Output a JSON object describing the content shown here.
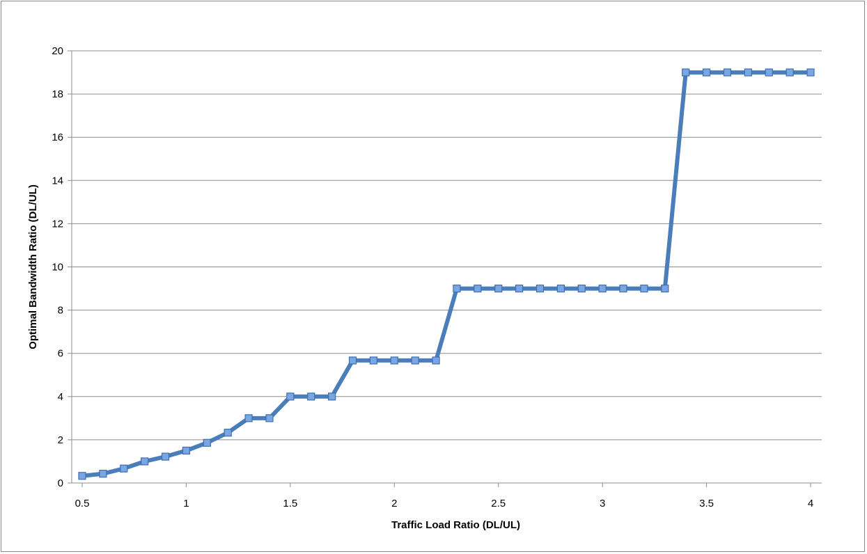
{
  "chart_data": {
    "type": "line",
    "title": "",
    "xlabel": "Traffic Load Ratio (DL/UL)",
    "ylabel": "Optimal Bandwidth Ratio (DL/UL)",
    "xlim": [
      0.5,
      4
    ],
    "ylim": [
      0,
      20
    ],
    "x_ticks": [
      "0.5",
      "1",
      "1.5",
      "2",
      "2.5",
      "3",
      "3.5",
      "4"
    ],
    "y_ticks": [
      "0",
      "2",
      "4",
      "6",
      "8",
      "10",
      "12",
      "14",
      "16",
      "18",
      "20"
    ],
    "grid": true,
    "legend": "none",
    "series": [
      {
        "color": "#4a7ebb",
        "marker": "square",
        "x": [
          0.5,
          0.6,
          0.7,
          0.8,
          0.9,
          1.0,
          1.1,
          1.2,
          1.3,
          1.4,
          1.5,
          1.6,
          1.7,
          1.8,
          1.9,
          2.0,
          2.1,
          2.2,
          2.3,
          2.4,
          2.5,
          2.6,
          2.7,
          2.8,
          2.9,
          3.0,
          3.1,
          3.2,
          3.3,
          3.4,
          3.5,
          3.6,
          3.7,
          3.8,
          3.9,
          4.0
        ],
        "values": [
          0.33,
          0.43,
          0.67,
          1.0,
          1.22,
          1.5,
          1.86,
          2.33,
          3.0,
          3.0,
          4.0,
          4.0,
          4.0,
          5.67,
          5.67,
          5.67,
          5.67,
          5.67,
          9.0,
          9.0,
          9.0,
          9.0,
          9.0,
          9.0,
          9.0,
          9.0,
          9.0,
          9.0,
          9.0,
          19.0,
          19.0,
          19.0,
          19.0,
          19.0,
          19.0,
          19.0
        ]
      }
    ]
  }
}
